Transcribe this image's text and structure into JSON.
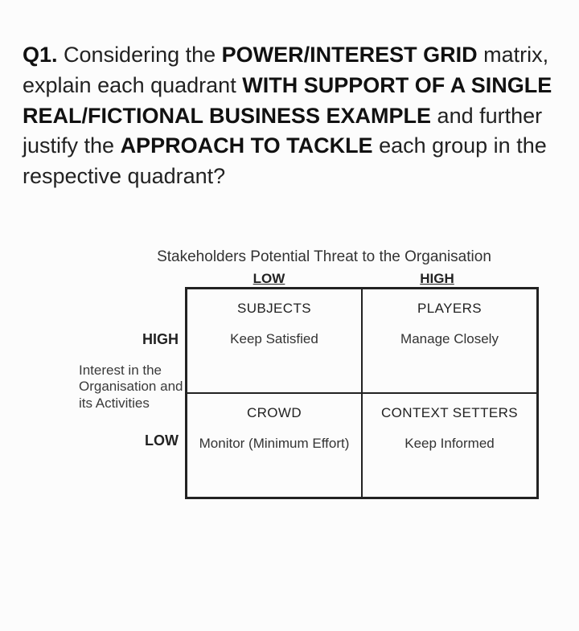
{
  "question": {
    "prefix": "Q1.",
    "p1": " Considering the ",
    "b1": "POWER/INTEREST GRID",
    "p2": " matrix, explain each quadrant ",
    "b2": "WITH SUPPORT OF A SINGLE REAL/FICTIONAL BUSINESS EXAMPLE",
    "p3": " and further justify the ",
    "b3": "APPROACH TO TACKLE",
    "p4": " each group in the respective quadrant?"
  },
  "matrix": {
    "title": "Stakeholders Potential Threat to the Organisation",
    "col_low": "LOW",
    "col_high": "HIGH",
    "row_high": "HIGH",
    "row_low": "LOW",
    "y_caption": "Interest in the Organisation and its Activities",
    "cells": {
      "tl": {
        "title": "SUBJECTS",
        "sub": "Keep Satisfied"
      },
      "tr": {
        "title": "PLAYERS",
        "sub": "Manage Closely"
      },
      "bl": {
        "title": "CROWD",
        "sub": "Monitor (Minimum Effort)"
      },
      "br": {
        "title": "CONTEXT SETTERS",
        "sub": "Keep Informed"
      }
    },
    "styling": {
      "border_color": "#222222",
      "title_fontsize": 19,
      "cell_title_fontsize": 17,
      "cell_sub_fontsize": 17,
      "background_color": "#fcfcfc"
    }
  }
}
